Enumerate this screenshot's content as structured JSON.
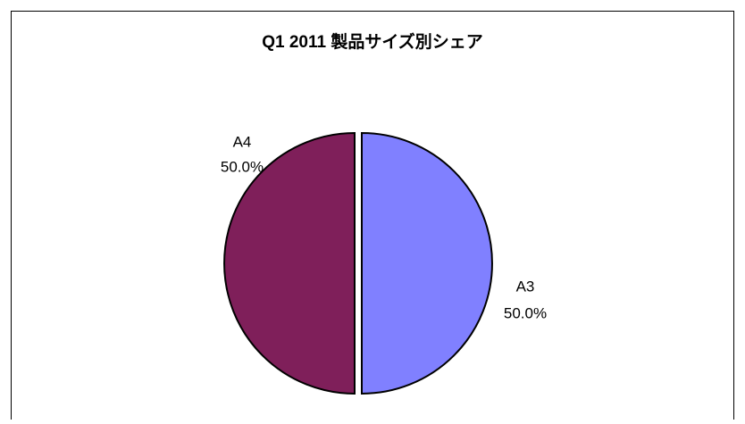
{
  "chart_data": {
    "type": "pie",
    "title": "Q1 2011 製品サイズ別シェア",
    "categories": [
      "A3",
      "A4"
    ],
    "values": [
      50,
      50
    ],
    "value_labels": [
      "50.0%",
      "50.0%"
    ],
    "colors": [
      "#8080ff",
      "#7f1f5a"
    ]
  }
}
